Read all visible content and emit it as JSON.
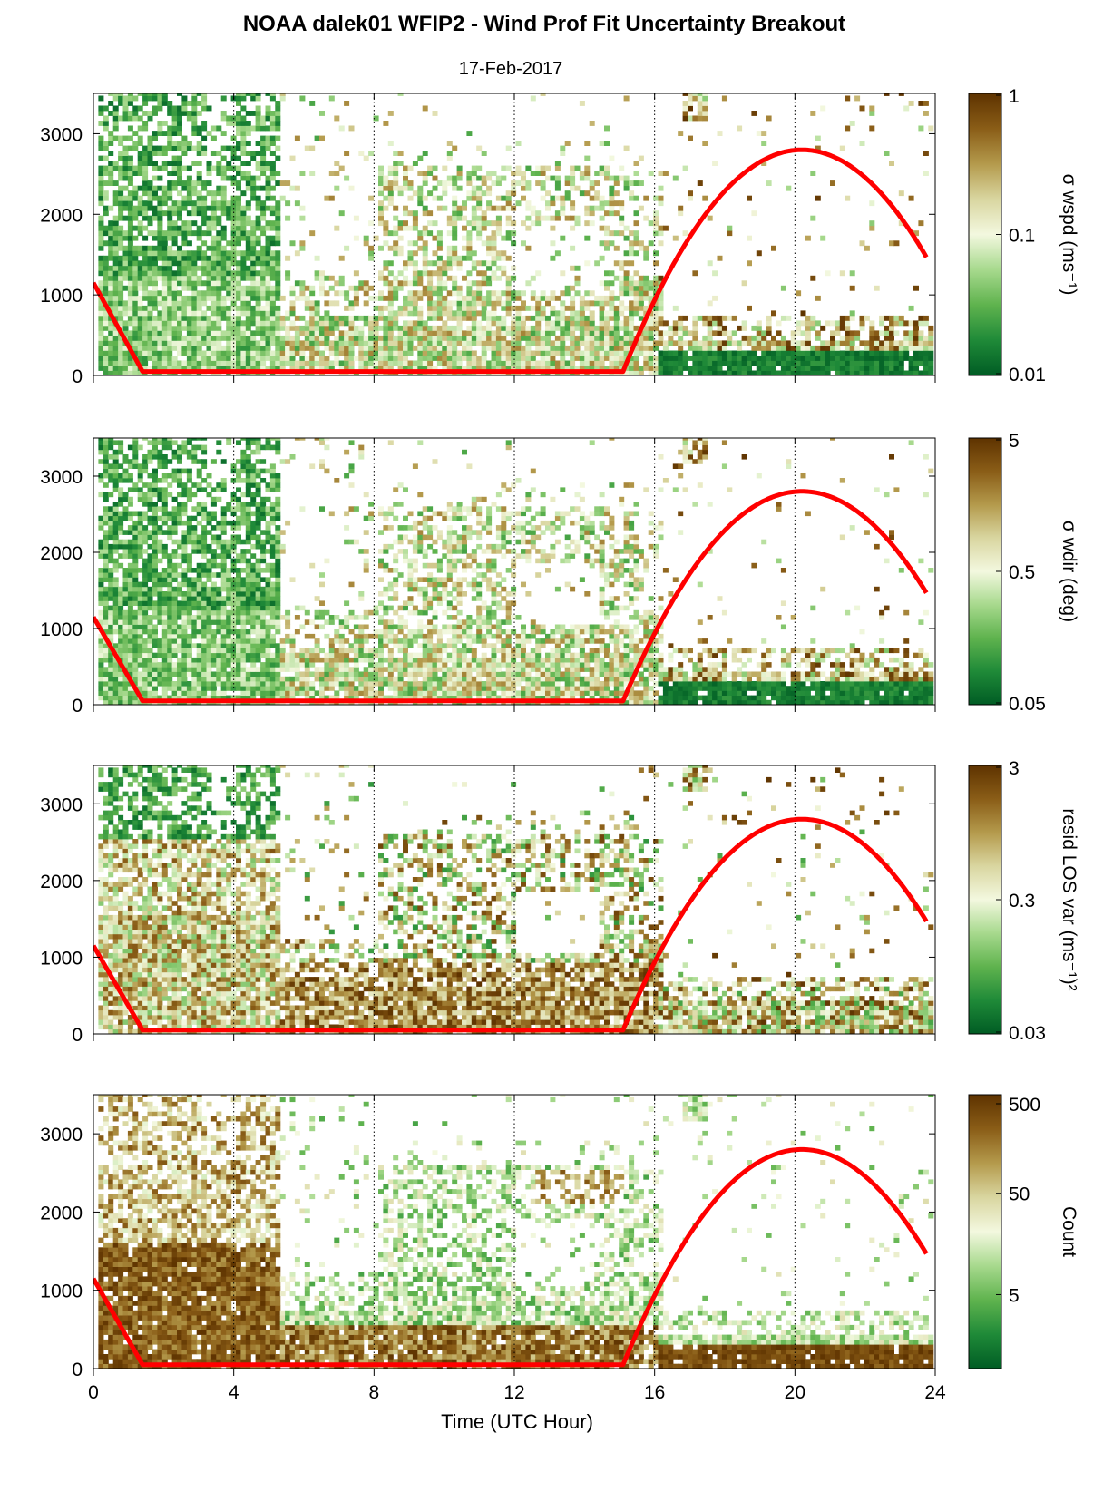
{
  "figure": {
    "title": "NOAA dalek01 WFIP2 - Wind Prof Fit Uncertainty Breakout",
    "subtitle": "17-Feb-2017",
    "xlabel": "Time (UTC Hour)"
  },
  "colors": {
    "sun_curve": "#ff0000",
    "colormap": [
      "#005c24",
      "#1f8a38",
      "#5fb34e",
      "#a7d98d",
      "#f3f8df",
      "#d9d6a0",
      "#b49a4c",
      "#8a5d17",
      "#5e3300"
    ]
  },
  "chart_data": [
    {
      "type": "heatmap",
      "panel": 1,
      "xlim": [
        0,
        24
      ],
      "ylim": [
        0,
        3500
      ],
      "xticks": [
        0,
        4,
        8,
        12,
        16,
        20,
        24
      ],
      "yticks": [
        0,
        1000,
        2000,
        3000
      ],
      "grid": "vertical dotted lines every 4 hours",
      "colorbar": {
        "label": "σ wspd (ms⁻¹)",
        "scale": "log",
        "ticks": [
          "1",
          "0.1",
          "0.01"
        ],
        "range": [
          0.01,
          1
        ]
      },
      "sun_elevation_curve": {
        "x": [
          0,
          1.4,
          15.1,
          16,
          17,
          18,
          19,
          20,
          20.2,
          21,
          22,
          23,
          23.8
        ],
        "y": [
          1150,
          50,
          50,
          1250,
          2000,
          2450,
          2720,
          2800,
          2800,
          2720,
          2450,
          2000,
          1400
        ]
      }
    },
    {
      "type": "heatmap",
      "panel": 2,
      "xlim": [
        0,
        24
      ],
      "ylim": [
        0,
        3500
      ],
      "xticks": [
        0,
        4,
        8,
        12,
        16,
        20,
        24
      ],
      "yticks": [
        0,
        1000,
        2000,
        3000
      ],
      "grid": "vertical dotted lines every 4 hours",
      "colorbar": {
        "label": "σ wdir (deg)",
        "scale": "log",
        "ticks": [
          "5",
          "0.5",
          "0.05"
        ],
        "range": [
          0.05,
          5
        ]
      },
      "sun_elevation_curve": {
        "x": [
          0,
          1.4,
          15.1,
          16,
          17,
          18,
          19,
          20,
          20.2,
          21,
          22,
          23,
          23.8
        ],
        "y": [
          1150,
          50,
          50,
          1250,
          2000,
          2450,
          2720,
          2800,
          2800,
          2720,
          2450,
          2000,
          1400
        ]
      }
    },
    {
      "type": "heatmap",
      "panel": 3,
      "xlim": [
        0,
        24
      ],
      "ylim": [
        0,
        3500
      ],
      "xticks": [
        0,
        4,
        8,
        12,
        16,
        20,
        24
      ],
      "yticks": [
        0,
        1000,
        2000,
        3000
      ],
      "grid": "vertical dotted lines every 4 hours",
      "colorbar": {
        "label": "resid LOS var (ms⁻¹)²",
        "scale": "log",
        "ticks": [
          "3",
          "0.3",
          "0.03"
        ],
        "range": [
          0.03,
          3
        ]
      },
      "sun_elevation_curve": {
        "x": [
          0,
          1.4,
          15.1,
          16,
          17,
          18,
          19,
          20,
          20.2,
          21,
          22,
          23,
          23.8
        ],
        "y": [
          1150,
          50,
          50,
          1250,
          2000,
          2450,
          2720,
          2800,
          2800,
          2720,
          2450,
          2000,
          1400
        ]
      }
    },
    {
      "type": "heatmap",
      "panel": 4,
      "xlim": [
        0,
        24
      ],
      "ylim": [
        0,
        3500
      ],
      "xticks": [
        0,
        4,
        8,
        12,
        16,
        20,
        24
      ],
      "yticks": [
        0,
        1000,
        2000,
        3000
      ],
      "grid": "vertical dotted lines every 4 hours",
      "colorbar": {
        "label": "Count",
        "scale": "log",
        "ticks": [
          "500",
          "50",
          "5"
        ],
        "range": [
          1,
          500
        ]
      },
      "sun_elevation_curve": {
        "x": [
          0,
          1.4,
          15.1,
          16,
          17,
          18,
          19,
          20,
          20.2,
          21,
          22,
          23,
          23.8
        ],
        "y": [
          1150,
          50,
          50,
          1250,
          2000,
          2450,
          2720,
          2800,
          2800,
          2720,
          2450,
          2000,
          1400
        ]
      }
    }
  ]
}
